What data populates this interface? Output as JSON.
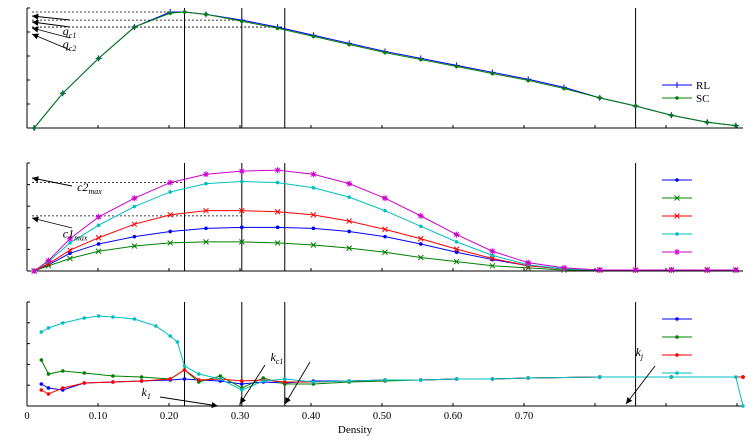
{
  "chart_data": [
    {
      "type": "line",
      "panel": "top",
      "xlabel": "",
      "ylabel": "",
      "xlim": [
        0,
        1
      ],
      "ylim": [
        0,
        1
      ],
      "legend_position": "right",
      "series": [
        {
          "name": "RL",
          "color": "#0000ff",
          "marker": "plus",
          "x": [
            0.01,
            0.05,
            0.1,
            0.15,
            0.2,
            0.22,
            0.25,
            0.3,
            0.35,
            0.4,
            0.45,
            0.5,
            0.55,
            0.6,
            0.65,
            0.7,
            0.75,
            0.8,
            0.85,
            0.9,
            0.95,
            0.99
          ],
          "y": [
            0.0,
            0.3,
            0.6,
            0.87,
            1.0,
            1.0,
            0.98,
            0.93,
            0.87,
            0.8,
            0.73,
            0.66,
            0.6,
            0.54,
            0.48,
            0.42,
            0.35,
            0.26,
            0.19,
            0.11,
            0.05,
            0.02
          ]
        },
        {
          "name": "SC",
          "color": "#008000",
          "marker": "dot",
          "x": [
            0.01,
            0.05,
            0.1,
            0.15,
            0.2,
            0.22,
            0.25,
            0.3,
            0.35,
            0.4,
            0.45,
            0.5,
            0.55,
            0.6,
            0.65,
            0.7,
            0.75,
            0.8,
            0.85,
            0.9,
            0.95,
            0.99
          ],
          "y": [
            0.0,
            0.3,
            0.6,
            0.87,
            0.99,
            1.0,
            0.98,
            0.92,
            0.86,
            0.79,
            0.72,
            0.65,
            0.59,
            0.53,
            0.47,
            0.41,
            0.34,
            0.26,
            0.19,
            0.11,
            0.05,
            0.02
          ]
        }
      ],
      "vlines": [
        0.22,
        0.3,
        0.36,
        0.85
      ],
      "hlines": [
        1.0,
        0.93,
        0.87
      ],
      "annotations": [
        {
          "text": "q",
          "sub": "c1",
          "x": 0.05,
          "y": 0.8
        },
        {
          "text": "q",
          "sub": "c2",
          "x": 0.05,
          "y": 0.69
        }
      ]
    },
    {
      "type": "line",
      "panel": "middle",
      "xlabel": "",
      "ylabel": "",
      "xlim": [
        0,
        1
      ],
      "ylim": [
        0,
        1
      ],
      "legend_position": "right",
      "series": [
        {
          "color": "#0000ff",
          "marker": "dot",
          "x": [
            0.01,
            0.03,
            0.06,
            0.1,
            0.15,
            0.2,
            0.25,
            0.3,
            0.35,
            0.4,
            0.45,
            0.5,
            0.55,
            0.6,
            0.65,
            0.7,
            0.75,
            0.8,
            0.85,
            0.9,
            0.95,
            0.99
          ],
          "y": [
            0.0,
            0.06,
            0.17,
            0.26,
            0.33,
            0.38,
            0.41,
            0.42,
            0.42,
            0.41,
            0.38,
            0.33,
            0.26,
            0.18,
            0.11,
            0.05,
            0.02,
            0.01,
            0.01,
            0.01,
            0.01,
            0.01
          ]
        },
        {
          "color": "#008000",
          "marker": "x",
          "x": [
            0.01,
            0.03,
            0.06,
            0.1,
            0.15,
            0.2,
            0.25,
            0.3,
            0.35,
            0.4,
            0.45,
            0.5,
            0.55,
            0.6,
            0.65,
            0.7,
            0.75,
            0.8,
            0.85,
            0.9,
            0.95,
            0.99
          ],
          "y": [
            0.0,
            0.05,
            0.12,
            0.19,
            0.24,
            0.27,
            0.28,
            0.28,
            0.27,
            0.25,
            0.22,
            0.18,
            0.13,
            0.09,
            0.05,
            0.03,
            0.01,
            0.01,
            0.01,
            0.01,
            0.01,
            0.01
          ]
        },
        {
          "color": "#ff0000",
          "marker": "x",
          "x": [
            0.01,
            0.03,
            0.06,
            0.1,
            0.15,
            0.2,
            0.25,
            0.3,
            0.35,
            0.4,
            0.45,
            0.5,
            0.55,
            0.6,
            0.65,
            0.7,
            0.75,
            0.8,
            0.85,
            0.9,
            0.95,
            0.99
          ],
          "y": [
            0.0,
            0.07,
            0.2,
            0.32,
            0.45,
            0.54,
            0.58,
            0.58,
            0.57,
            0.54,
            0.48,
            0.4,
            0.31,
            0.21,
            0.12,
            0.05,
            0.02,
            0.01,
            0.01,
            0.01,
            0.01,
            0.01
          ]
        },
        {
          "color": "#00bfbf",
          "marker": "dot",
          "x": [
            0.01,
            0.03,
            0.06,
            0.1,
            0.15,
            0.2,
            0.25,
            0.3,
            0.35,
            0.4,
            0.45,
            0.5,
            0.55,
            0.6,
            0.65,
            0.7,
            0.75,
            0.8,
            0.85,
            0.9,
            0.95,
            0.99
          ],
          "y": [
            0.0,
            0.09,
            0.27,
            0.44,
            0.62,
            0.76,
            0.84,
            0.86,
            0.85,
            0.8,
            0.71,
            0.58,
            0.43,
            0.28,
            0.15,
            0.06,
            0.02,
            0.01,
            0.01,
            0.01,
            0.01,
            0.01
          ]
        },
        {
          "color": "#cc00cc",
          "marker": "star",
          "x": [
            0.01,
            0.03,
            0.06,
            0.1,
            0.15,
            0.2,
            0.25,
            0.3,
            0.35,
            0.4,
            0.45,
            0.5,
            0.55,
            0.6,
            0.65,
            0.7,
            0.75,
            0.8,
            0.85,
            0.9,
            0.95,
            0.99
          ],
          "y": [
            0.0,
            0.1,
            0.31,
            0.52,
            0.7,
            0.85,
            0.93,
            0.96,
            0.97,
            0.93,
            0.84,
            0.7,
            0.53,
            0.35,
            0.19,
            0.08,
            0.03,
            0.01,
            0.01,
            0.01,
            0.01,
            0.01
          ]
        }
      ],
      "vlines": [
        0.22,
        0.3,
        0.36,
        0.85
      ],
      "hlines": [
        0.85,
        0.53
      ],
      "annotations": [
        {
          "text": "c2",
          "sub": "max",
          "x": 0.07,
          "y": 0.77
        },
        {
          "text": "c1",
          "sub": "max",
          "x": 0.05,
          "y": 0.32
        }
      ]
    },
    {
      "type": "line",
      "panel": "bottom",
      "xlabel": "Density",
      "ylabel": "",
      "xlim": [
        0,
        1
      ],
      "ylim": [
        0,
        1
      ],
      "xticks": [
        "0",
        "0.10",
        "0.20",
        "0.30",
        "0.40",
        "0.50",
        "0.60",
        "0.70"
      ],
      "legend_position": "right",
      "series": [
        {
          "color": "#0000ff",
          "marker": "dot",
          "x": [
            0.02,
            0.03,
            0.05,
            0.08,
            0.12,
            0.16,
            0.2,
            0.22,
            0.24,
            0.27,
            0.3,
            0.33,
            0.36,
            0.4,
            0.45,
            0.5,
            0.55,
            0.6,
            0.65,
            0.7,
            0.8,
            0.9,
            1.0
          ],
          "y": [
            0.22,
            0.18,
            0.16,
            0.23,
            0.24,
            0.25,
            0.26,
            0.27,
            0.26,
            0.25,
            0.22,
            0.24,
            0.23,
            0.25,
            0.25,
            0.26,
            0.26,
            0.27,
            0.27,
            0.28,
            0.29,
            0.29,
            0.29
          ]
        },
        {
          "color": "#008000",
          "marker": "dot",
          "x": [
            0.02,
            0.03,
            0.05,
            0.08,
            0.12,
            0.16,
            0.2,
            0.22,
            0.24,
            0.27,
            0.3,
            0.33,
            0.36,
            0.4,
            0.45,
            0.5,
            0.55,
            0.6,
            0.65,
            0.7,
            0.8,
            0.9,
            1.0
          ],
          "y": [
            0.46,
            0.32,
            0.35,
            0.33,
            0.3,
            0.29,
            0.27,
            0.36,
            0.24,
            0.3,
            0.18,
            0.28,
            0.22,
            0.22,
            0.24,
            0.25,
            0.26,
            0.27,
            0.27,
            0.28,
            0.29,
            0.29,
            0.29
          ]
        },
        {
          "color": "#ff0000",
          "marker": "dot",
          "x": [
            0.02,
            0.03,
            0.05,
            0.08,
            0.12,
            0.16,
            0.2,
            0.22,
            0.24,
            0.27,
            0.3,
            0.33,
            0.36,
            0.4,
            0.45,
            0.5,
            0.55,
            0.6,
            0.65,
            0.7,
            0.8,
            0.9,
            1.0
          ],
          "y": [
            0.16,
            0.12,
            0.18,
            0.23,
            0.24,
            0.25,
            0.27,
            0.36,
            0.26,
            0.27,
            0.25,
            0.26,
            0.24,
            0.24,
            0.25,
            0.26,
            0.26,
            0.27,
            0.27,
            0.28,
            0.29,
            0.29,
            0.29
          ]
        },
        {
          "color": "#00bfbf",
          "marker": "dot",
          "x": [
            0.02,
            0.03,
            0.05,
            0.08,
            0.1,
            0.12,
            0.15,
            0.18,
            0.2,
            0.21,
            0.22,
            0.24,
            0.27,
            0.3,
            0.33,
            0.36,
            0.4,
            0.45,
            0.5,
            0.55,
            0.6,
            0.65,
            0.7,
            0.8,
            0.9,
            0.99,
            1.0
          ],
          "y": [
            0.74,
            0.78,
            0.83,
            0.88,
            0.9,
            0.89,
            0.87,
            0.8,
            0.7,
            0.64,
            0.4,
            0.32,
            0.27,
            0.16,
            0.25,
            0.27,
            0.24,
            0.25,
            0.26,
            0.26,
            0.27,
            0.27,
            0.28,
            0.29,
            0.29,
            0.29,
            0.0
          ]
        }
      ],
      "vlines": [
        0.22,
        0.3,
        0.36,
        0.85
      ],
      "annotations": [
        {
          "text": "k",
          "sub": "1",
          "x": 0.16,
          "y": 0.1
        },
        {
          "text": "k",
          "sub": "c1",
          "x": 0.34,
          "y": 0.45
        },
        {
          "text": "k",
          "sub": "j",
          "x": 0.85,
          "y": 0.5
        }
      ]
    }
  ]
}
